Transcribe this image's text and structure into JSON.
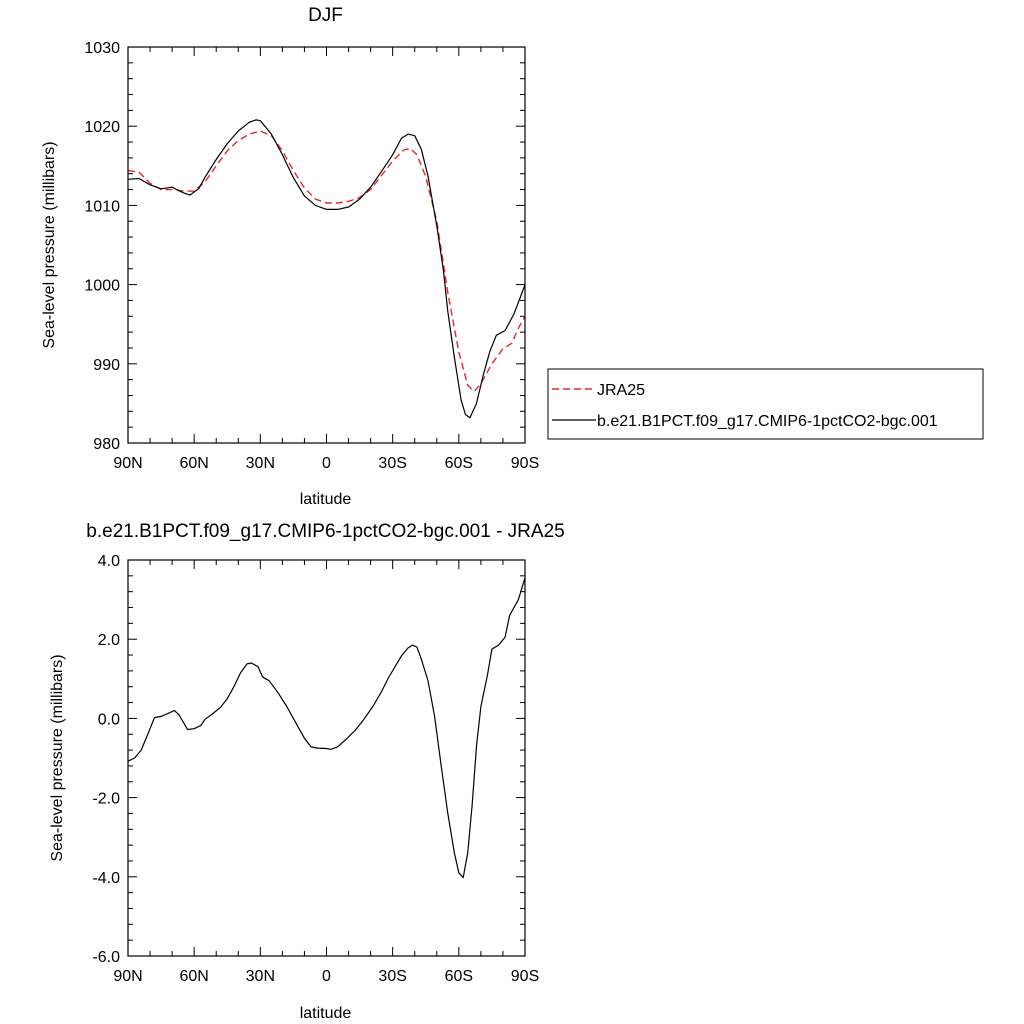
{
  "chart_data": [
    {
      "type": "line",
      "title": "DJF",
      "xlabel": "latitude",
      "ylabel": "Sea-level pressure (millibars)",
      "xlim": [
        90,
        -90
      ],
      "ylim": [
        980,
        1030
      ],
      "x_ticks": [
        90,
        60,
        30,
        0,
        -30,
        -60,
        -90
      ],
      "x_tick_labels": [
        "90N",
        "60N",
        "30N",
        "0",
        "30S",
        "60S",
        "90S"
      ],
      "y_ticks": [
        980,
        990,
        1000,
        1010,
        1020,
        1030
      ],
      "y_tick_labels": [
        "980",
        "990",
        "1000",
        "1010",
        "1020",
        "1030"
      ],
      "legend_position": "right",
      "series": [
        {
          "name": "JRA25",
          "color": "#e8262a",
          "dash": "dashed",
          "points": [
            [
              90,
              1014.4
            ],
            [
              85,
              1014.2
            ],
            [
              80,
              1012.8
            ],
            [
              75,
              1012.0
            ],
            [
              70,
              1012.0
            ],
            [
              65,
              1011.8
            ],
            [
              60,
              1011.8
            ],
            [
              55,
              1013.0
            ],
            [
              50,
              1015.0
            ],
            [
              45,
              1016.9
            ],
            [
              40,
              1018.2
            ],
            [
              35,
              1019.0
            ],
            [
              30,
              1019.4
            ],
            [
              25,
              1018.8
            ],
            [
              20,
              1016.9
            ],
            [
              15,
              1014.4
            ],
            [
              10,
              1012.2
            ],
            [
              5,
              1010.8
            ],
            [
              0,
              1010.3
            ],
            [
              -5,
              1010.3
            ],
            [
              -10,
              1010.5
            ],
            [
              -15,
              1011.0
            ],
            [
              -20,
              1012.0
            ],
            [
              -25,
              1013.8
            ],
            [
              -30,
              1015.6
            ],
            [
              -35,
              1017.0
            ],
            [
              -38,
              1017.2
            ],
            [
              -41,
              1016.4
            ],
            [
              -45,
              1013.6
            ],
            [
              -50,
              1008.0
            ],
            [
              -55,
              999.0
            ],
            [
              -60,
              991.5
            ],
            [
              -64,
              987.3
            ],
            [
              -67,
              986.5
            ],
            [
              -70,
              987.5
            ],
            [
              -75,
              990.0
            ],
            [
              -80,
              991.9
            ],
            [
              -84,
              992.6
            ],
            [
              -87,
              994.5
            ],
            [
              -90,
              996.0
            ]
          ]
        },
        {
          "name": "b.e21.B1PCT.f09_g17.CMIP6-1pctCO2-bgc.001",
          "color": "#000000",
          "dash": "solid",
          "points": [
            [
              90,
              1013.3
            ],
            [
              85,
              1013.4
            ],
            [
              80,
              1012.6
            ],
            [
              75,
              1012.1
            ],
            [
              70,
              1012.3
            ],
            [
              65,
              1011.6
            ],
            [
              62,
              1011.3
            ],
            [
              58,
              1012.1
            ],
            [
              55,
              1013.6
            ],
            [
              50,
              1015.8
            ],
            [
              45,
              1017.8
            ],
            [
              40,
              1019.4
            ],
            [
              35,
              1020.5
            ],
            [
              32,
              1020.8
            ],
            [
              30,
              1020.7
            ],
            [
              25,
              1019.0
            ],
            [
              20,
              1016.4
            ],
            [
              15,
              1013.5
            ],
            [
              10,
              1011.2
            ],
            [
              5,
              1010.0
            ],
            [
              0,
              1009.5
            ],
            [
              -5,
              1009.5
            ],
            [
              -10,
              1009.8
            ],
            [
              -15,
              1010.8
            ],
            [
              -20,
              1012.3
            ],
            [
              -25,
              1014.3
            ],
            [
              -30,
              1016.4
            ],
            [
              -34,
              1018.5
            ],
            [
              -37,
              1019.0
            ],
            [
              -40,
              1018.8
            ],
            [
              -43,
              1017.1
            ],
            [
              -46,
              1013.7
            ],
            [
              -50,
              1007.4
            ],
            [
              -53,
              1001.8
            ],
            [
              -55,
              996.6
            ],
            [
              -58,
              990.8
            ],
            [
              -61,
              985.5
            ],
            [
              -63,
              983.6
            ],
            [
              -65,
              983.2
            ],
            [
              -68,
              985.0
            ],
            [
              -71,
              988.5
            ],
            [
              -74,
              991.5
            ],
            [
              -77,
              993.6
            ],
            [
              -81,
              994.2
            ],
            [
              -85,
              996.3
            ],
            [
              -88,
              998.5
            ],
            [
              -90,
              1000.0
            ]
          ]
        }
      ]
    },
    {
      "type": "line",
      "title": "b.e21.B1PCT.f09_g17.CMIP6-1pctCO2-bgc.001 - JRA25",
      "xlabel": "latitude",
      "ylabel": "Sea-level pressure (millibars)",
      "xlim": [
        90,
        -90
      ],
      "ylim": [
        -6,
        4
      ],
      "x_ticks": [
        90,
        60,
        30,
        0,
        -30,
        -60,
        -90
      ],
      "x_tick_labels": [
        "90N",
        "60N",
        "30N",
        "0",
        "30S",
        "60S",
        "90S"
      ],
      "y_ticks": [
        -6,
        -4,
        -2,
        0,
        2,
        4
      ],
      "y_tick_labels": [
        "-6.0",
        "-4.0",
        "-2.0",
        "0.0",
        "2.0",
        "4.0"
      ],
      "series": [
        {
          "color": "#000000",
          "dash": "solid",
          "points": [
            [
              90,
              -1.08
            ],
            [
              87,
              -1.0
            ],
            [
              84,
              -0.8
            ],
            [
              81,
              -0.4
            ],
            [
              78,
              0.02
            ],
            [
              75,
              0.05
            ],
            [
              72,
              0.12
            ],
            [
              69,
              0.2
            ],
            [
              67,
              0.1
            ],
            [
              63,
              -0.28
            ],
            [
              60,
              -0.26
            ],
            [
              57,
              -0.18
            ],
            [
              55,
              -0.02
            ],
            [
              52,
              0.1
            ],
            [
              48,
              0.28
            ],
            [
              45,
              0.5
            ],
            [
              42,
              0.8
            ],
            [
              39,
              1.15
            ],
            [
              36,
              1.38
            ],
            [
              34,
              1.4
            ],
            [
              31,
              1.3
            ],
            [
              29,
              1.05
            ],
            [
              26,
              0.95
            ],
            [
              22,
              0.65
            ],
            [
              18,
              0.3
            ],
            [
              14,
              -0.1
            ],
            [
              10,
              -0.5
            ],
            [
              7,
              -0.72
            ],
            [
              4,
              -0.75
            ],
            [
              0,
              -0.76
            ],
            [
              -2,
              -0.78
            ],
            [
              -5,
              -0.72
            ],
            [
              -9,
              -0.52
            ],
            [
              -13,
              -0.3
            ],
            [
              -17,
              -0.02
            ],
            [
              -21,
              0.3
            ],
            [
              -25,
              0.68
            ],
            [
              -28,
              1.02
            ],
            [
              -31,
              1.3
            ],
            [
              -34,
              1.58
            ],
            [
              -37,
              1.78
            ],
            [
              -39,
              1.85
            ],
            [
              -41,
              1.8
            ],
            [
              -43,
              1.5
            ],
            [
              -46,
              0.95
            ],
            [
              -49,
              0.05
            ],
            [
              -52,
              -1.2
            ],
            [
              -55,
              -2.4
            ],
            [
              -58,
              -3.4
            ],
            [
              -60,
              -3.9
            ],
            [
              -62,
              -4.02
            ],
            [
              -64,
              -3.4
            ],
            [
              -66,
              -2.2
            ],
            [
              -68,
              -0.7
            ],
            [
              -70,
              0.3
            ],
            [
              -73,
              1.1
            ],
            [
              -75,
              1.75
            ],
            [
              -78,
              1.85
            ],
            [
              -81,
              2.05
            ],
            [
              -83,
              2.6
            ],
            [
              -85,
              2.8
            ],
            [
              -87,
              3.0
            ],
            [
              -90,
              3.55
            ]
          ]
        }
      ]
    }
  ]
}
